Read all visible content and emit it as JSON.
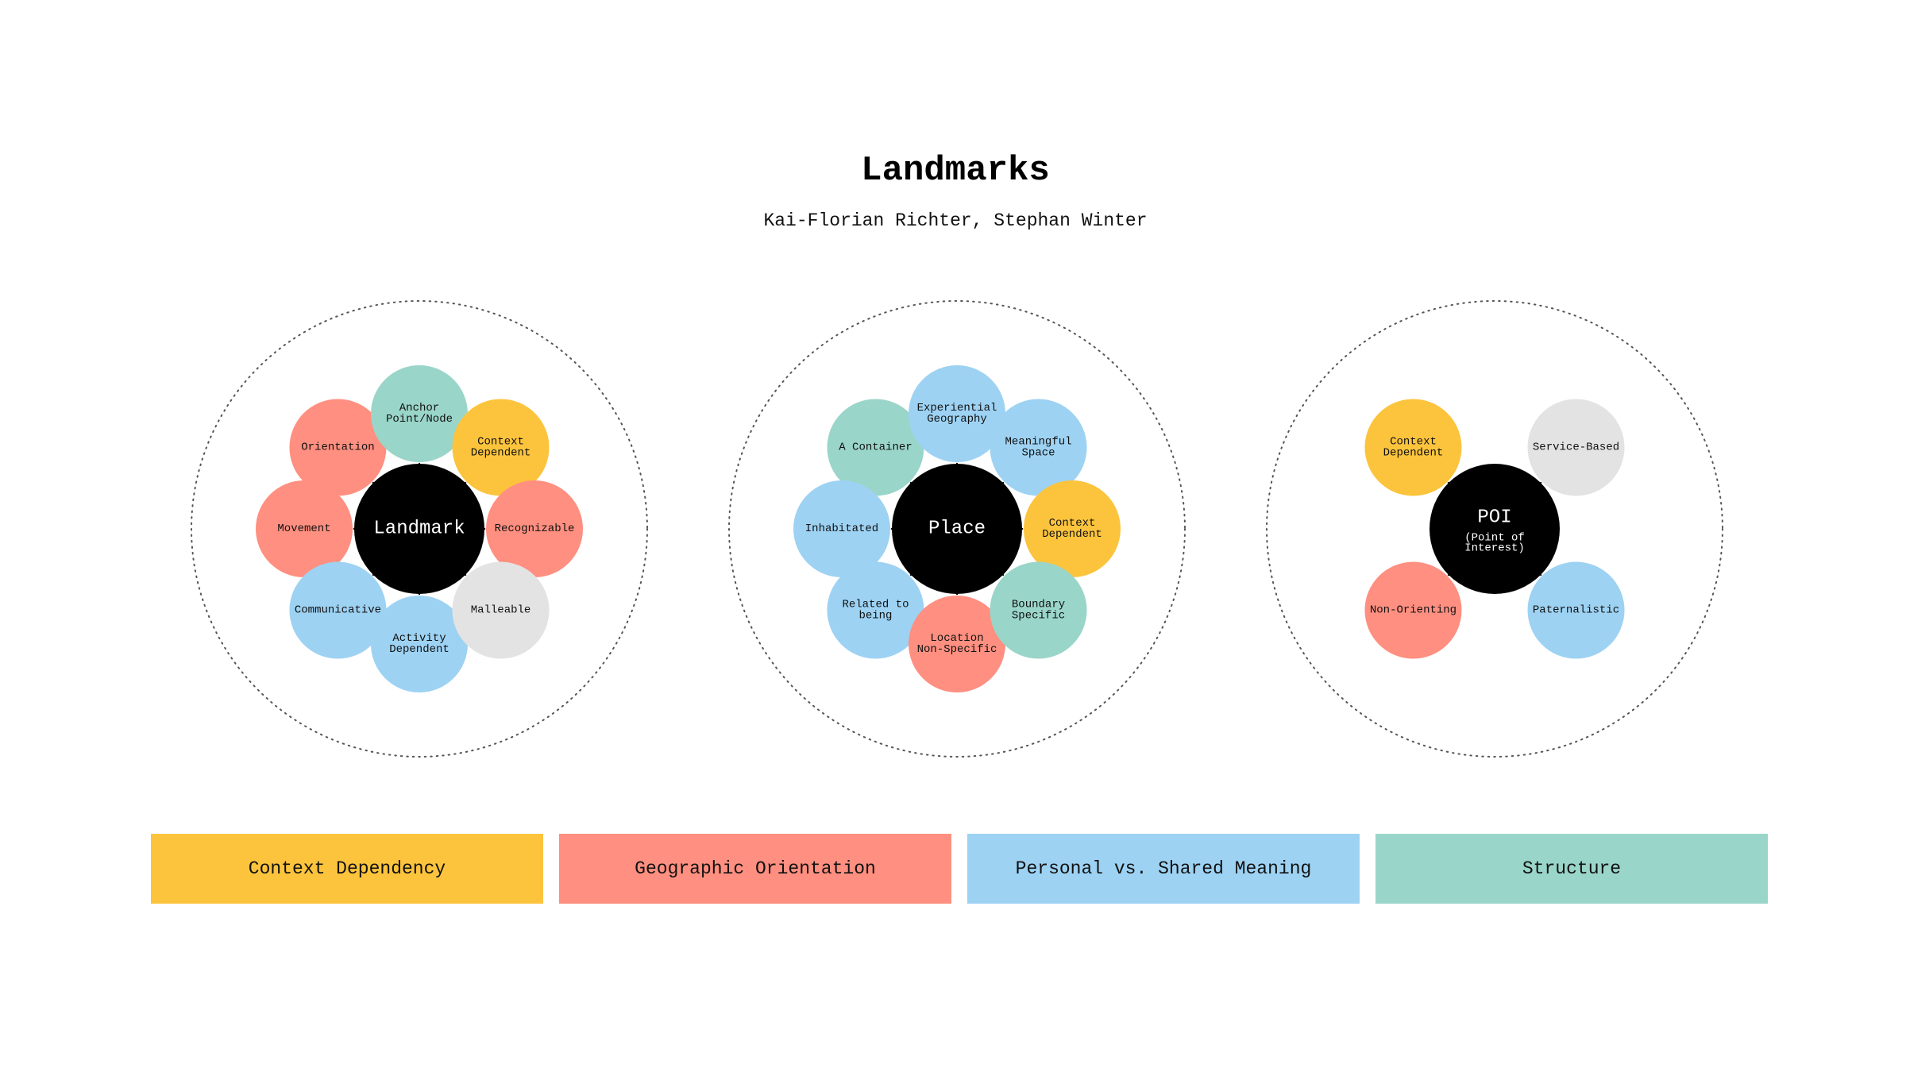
{
  "header": {
    "title": "Landmarks",
    "subtitle": "Kai-Florian Richter, Stephan Winter"
  },
  "colors": {
    "context": "#FCC43D",
    "geographic": "#FF8F80",
    "personal": "#9DD2F3",
    "structure": "#9AD5C9",
    "neutral": "#E3E3E3",
    "hub": "#000000"
  },
  "clusters": [
    {
      "id": "landmark",
      "hub": {
        "label": "Landmark",
        "sublabel": ""
      },
      "nodes": [
        {
          "id": "orientation",
          "label": "Orientation",
          "category": "geographic"
        },
        {
          "id": "anchor-point-node",
          "label": "Anchor\nPoint/Node",
          "category": "structure"
        },
        {
          "id": "context-dependent",
          "label": "Context\nDependent",
          "category": "context"
        },
        {
          "id": "movement",
          "label": "Movement",
          "category": "geographic"
        },
        {
          "id": "recognizable",
          "label": "Recognizable",
          "category": "geographic"
        },
        {
          "id": "communicative",
          "label": "Communicative",
          "category": "personal"
        },
        {
          "id": "activity-dependent",
          "label": "Activity\nDependent",
          "category": "personal"
        },
        {
          "id": "malleable",
          "label": "Malleable",
          "category": "neutral"
        }
      ]
    },
    {
      "id": "place",
      "hub": {
        "label": "Place",
        "sublabel": ""
      },
      "nodes": [
        {
          "id": "a-container",
          "label": "A Container",
          "category": "structure"
        },
        {
          "id": "experiential-geography",
          "label": "Experiential\nGeography",
          "category": "personal"
        },
        {
          "id": "meaningful-space",
          "label": "Meaningful\nSpace",
          "category": "personal"
        },
        {
          "id": "inhabitated",
          "label": "Inhabitated",
          "category": "personal"
        },
        {
          "id": "context-dependent",
          "label": "Context\nDependent",
          "category": "context"
        },
        {
          "id": "related-to-being",
          "label": "Related to\nbeing",
          "category": "personal"
        },
        {
          "id": "location-non-specific",
          "label": "Location\nNon-Specific",
          "category": "geographic"
        },
        {
          "id": "boundary-specific",
          "label": "Boundary\nSpecific",
          "category": "structure"
        }
      ]
    },
    {
      "id": "poi",
      "hub": {
        "label": "POI",
        "sublabel": "(Point of\nInterest)"
      },
      "nodes": [
        {
          "id": "context-dependent",
          "label": "Context\nDependent",
          "category": "context"
        },
        {
          "id": "service-based",
          "label": "Service-Based",
          "category": "neutral"
        },
        {
          "id": "non-orienting",
          "label": "Non-Orienting",
          "category": "geographic"
        },
        {
          "id": "paternalistic",
          "label": "Paternalistic",
          "category": "personal"
        }
      ]
    }
  ],
  "legend": [
    {
      "label": "Context Dependency",
      "category": "context"
    },
    {
      "label": "Geographic Orientation",
      "category": "geographic"
    },
    {
      "label": "Personal vs. Shared Meaning",
      "category": "personal"
    },
    {
      "label": "Structure",
      "category": "structure"
    }
  ]
}
